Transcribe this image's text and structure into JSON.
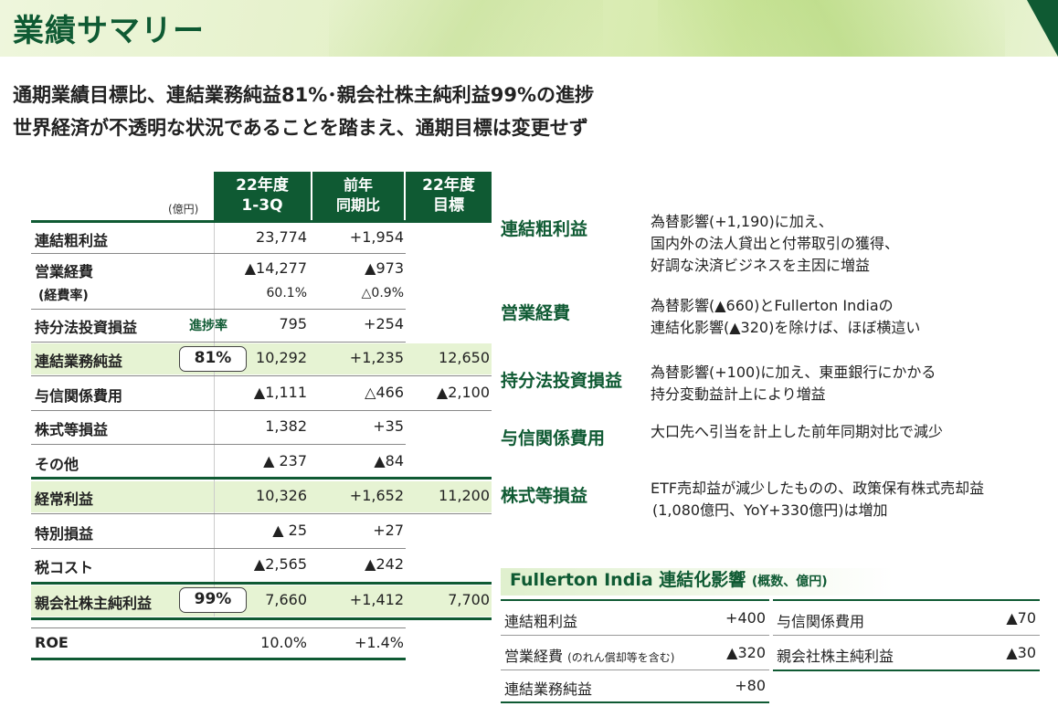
{
  "title": "業績サマリー",
  "headlines": [
    "通期業績目標比、連結業務純益81%･親会社株主純利益99%の進捗",
    "世界経済が不透明な状況であることを踏まえ、通期目標は変更せず"
  ],
  "table": {
    "unit": "(億円)",
    "col1": [
      "22年度",
      "1-3Q"
    ],
    "col2": [
      "前年",
      "同期比"
    ],
    "col3": [
      "22年度",
      "目標"
    ],
    "progress_label": "進捗率",
    "rows": [
      {
        "label": "連結粗利益",
        "v1": "23,774",
        "v2": "+1,954",
        "v3": ""
      },
      {
        "label": "営業経費",
        "v1": "▲14,277",
        "v2": "▲973",
        "v3": ""
      },
      {
        "label": "(経費率)",
        "v1": "60.1%",
        "v2": "△0.9%",
        "v3": ""
      },
      {
        "label": "持分法投資損益",
        "v1": "795",
        "v2": "+254",
        "v3": ""
      },
      {
        "label": "連結業務純益",
        "v1": "10,292",
        "v2": "+1,235",
        "v3": "12,650",
        "badge": "81%"
      },
      {
        "label": "与信関係費用",
        "v1": "▲1,111",
        "v2": "△466",
        "v3": "▲2,100"
      },
      {
        "label": "株式等損益",
        "v1": "1,382",
        "v2": "+35",
        "v3": ""
      },
      {
        "label": "その他",
        "v1": "▲ 237",
        "v2": "▲84",
        "v3": ""
      },
      {
        "label": "経常利益",
        "v1": "10,326",
        "v2": "+1,652",
        "v3": "11,200"
      },
      {
        "label": "特別損益",
        "v1": "▲ 25",
        "v2": "+27",
        "v3": ""
      },
      {
        "label": "税コスト",
        "v1": "▲2,565",
        "v2": "▲242",
        "v3": ""
      },
      {
        "label": "親会社株主純利益",
        "v1": "7,660",
        "v2": "+1,412",
        "v3": "7,700",
        "badge": "99%"
      },
      {
        "label": "ROE",
        "v1": "10.0%",
        "v2": "+1.4%",
        "v3": ""
      }
    ]
  },
  "commentary": [
    {
      "label": "連結粗利益",
      "lines": [
        "為替影響(+1,190)に加え、",
        "国内外の法人貸出と付帯取引の獲得、",
        "好調な決済ビジネスを主因に増益"
      ]
    },
    {
      "label": "営業経費",
      "lines": [
        "為替影響(▲660)とFullerton Indiaの",
        "連結化影響(▲320)を除けば、ほぼ横這い"
      ]
    },
    {
      "label": "持分法投資損益",
      "lines": [
        "為替影響(+100)に加え、東亜銀行にかかる",
        "持分変動益計上により増益"
      ]
    },
    {
      "label": "与信関係費用",
      "lines": [
        "大口先へ引当を計上した前年同期対比で減少"
      ]
    },
    {
      "label": "株式等損益",
      "lines": [
        "ETF売却益が減少したものの、政策保有株式売却益",
        "(1,080億円、YoY+330億円)は増加"
      ]
    }
  ],
  "fullerton": {
    "title": "Fullerton India 連結化影響",
    "subtitle": "(概数、億円)",
    "left": [
      {
        "label": "連結粗利益",
        "note": "",
        "value": "+400"
      },
      {
        "label": "営業経費",
        "note": "(のれん償却等を含む)",
        "value": "▲320"
      },
      {
        "label": "連結業務純益",
        "note": "",
        "value": "+80"
      }
    ],
    "right": [
      {
        "label": "与信関係費用",
        "value": "▲70"
      },
      {
        "label": "親会社株主純利益",
        "value": "▲30"
      }
    ]
  },
  "colors": {
    "brand_green": "#0f5a33",
    "highlight": "#e6f3d3"
  }
}
